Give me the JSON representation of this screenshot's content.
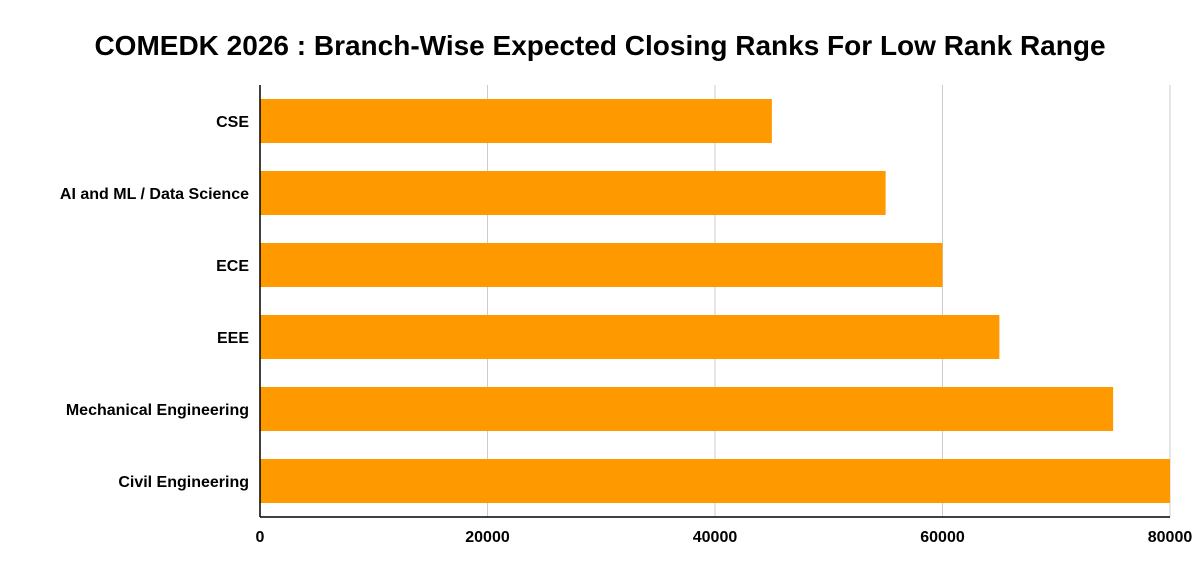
{
  "chart_data": {
    "type": "bar",
    "orientation": "horizontal",
    "title": "COMEDK 2026 : Branch-Wise Expected Closing Ranks For Low Rank Range",
    "xlabel": "",
    "ylabel": "",
    "categories": [
      "CSE",
      "AI and ML / Data Science",
      "ECE",
      "EEE",
      "Mechanical Engineering",
      "Civil Engineering"
    ],
    "values": [
      45000,
      55000,
      60000,
      65000,
      75000,
      80000
    ],
    "xlim": [
      0,
      80000
    ],
    "xticks": [
      "0",
      "20000",
      "40000",
      "60000",
      "80000"
    ],
    "grid": true,
    "legend": "none",
    "bar_color": "#ff9900",
    "grid_color": "#cccccc",
    "axis_color": "#000000"
  }
}
